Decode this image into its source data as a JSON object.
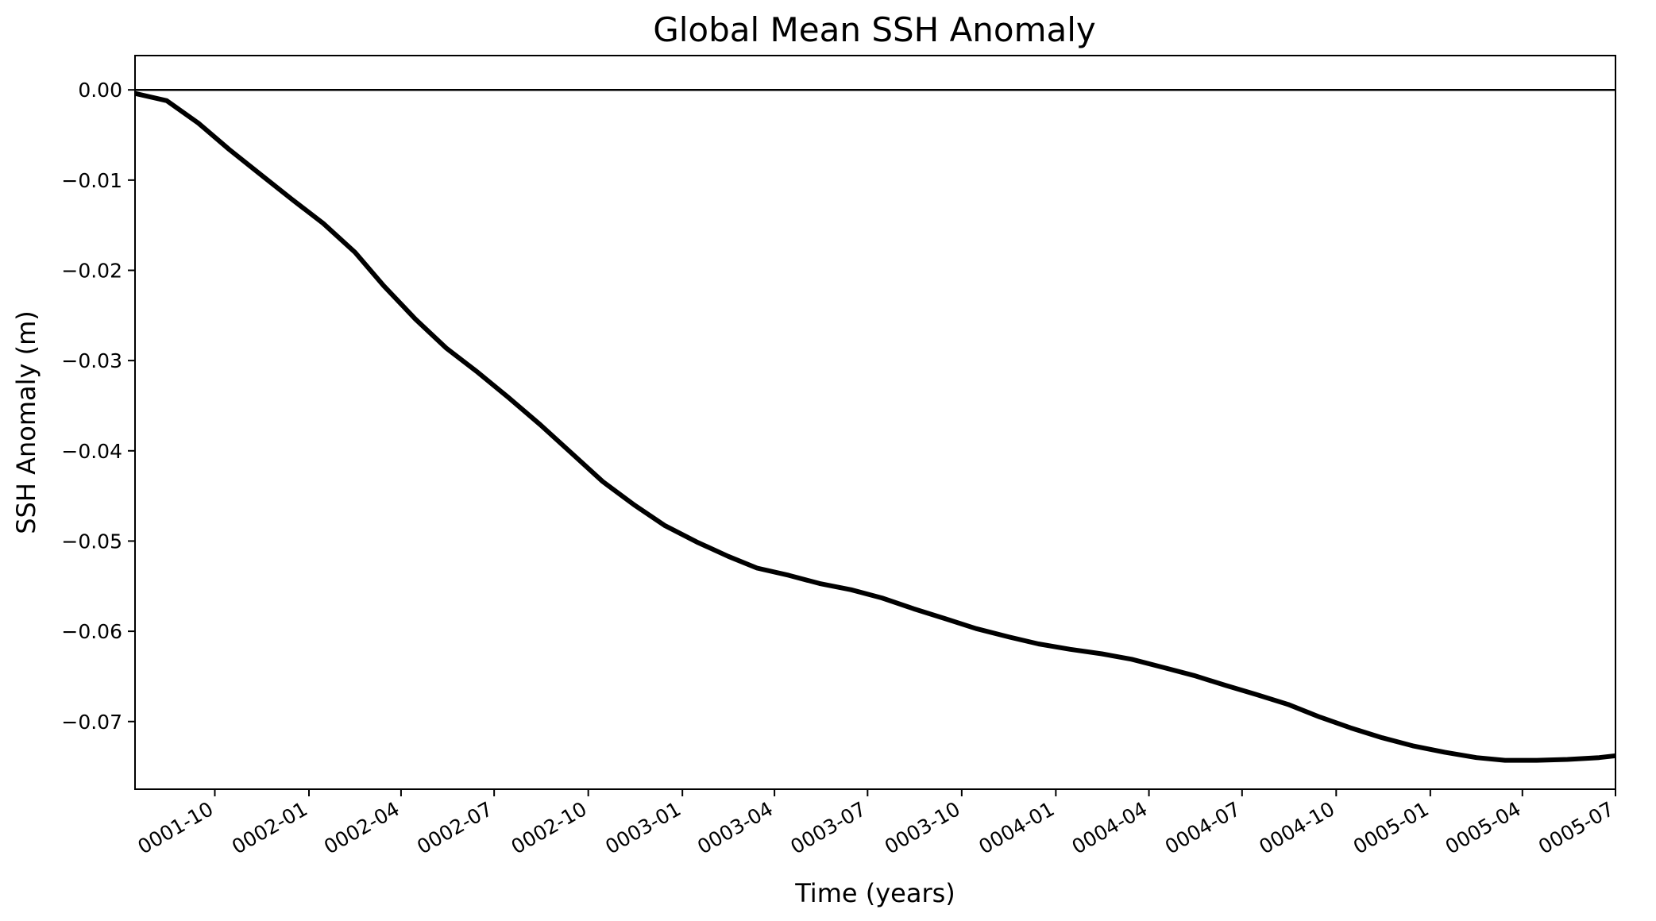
{
  "chart_data": {
    "type": "line",
    "title": "Global Mean SSH Anomaly",
    "xlabel": "Time (years)",
    "ylabel": "SSH Anomaly (m)",
    "x_axis_kind": "date",
    "xlim": [
      "0001-07-15",
      "0005-07-01"
    ],
    "ylim": [
      -0.0775,
      0.0038
    ],
    "y_ticks": [
      0.0,
      -0.01,
      -0.02,
      -0.03,
      -0.04,
      -0.05,
      -0.06,
      -0.07
    ],
    "y_tick_labels": [
      "0.00",
      "−0.01",
      "−0.02",
      "−0.03",
      "−0.04",
      "−0.05",
      "−0.06",
      "−0.07"
    ],
    "x_ticks": [
      "0001-10-01",
      "0002-01-01",
      "0002-04-01",
      "0002-07-01",
      "0002-10-01",
      "0003-01-01",
      "0003-04-01",
      "0003-07-01",
      "0003-10-01",
      "0004-01-01",
      "0004-04-01",
      "0004-07-01",
      "0004-10-01",
      "0005-01-01",
      "0005-04-01",
      "0005-07-01"
    ],
    "x_tick_labels": [
      "0001-10",
      "0002-01",
      "0002-04",
      "0002-07",
      "0002-10",
      "0003-01",
      "0003-04",
      "0003-07",
      "0003-10",
      "0004-01",
      "0004-04",
      "0004-07",
      "0004-10",
      "0005-01",
      "0005-04",
      "0005-07"
    ],
    "grid": false,
    "reference_line": {
      "y": 0.0,
      "color": "#000000"
    },
    "series": [
      {
        "color": "#000000",
        "x": [
          "0001-07-15",
          "0001-08-15",
          "0001-09-15",
          "0001-10-15",
          "0001-11-15",
          "0001-12-15",
          "0002-01-15",
          "0002-02-15",
          "0002-03-15",
          "0002-04-15",
          "0002-05-15",
          "0002-06-15",
          "0002-07-15",
          "0002-08-15",
          "0002-09-15",
          "0002-10-15",
          "0002-11-15",
          "0002-12-15",
          "0003-01-15",
          "0003-02-15",
          "0003-03-15",
          "0003-04-15",
          "0003-05-15",
          "0003-06-15",
          "0003-07-15",
          "0003-08-15",
          "0003-09-15",
          "0003-10-15",
          "0003-11-15",
          "0003-12-15",
          "0004-01-15",
          "0004-02-15",
          "0004-03-15",
          "0004-04-15",
          "0004-05-15",
          "0004-06-15",
          "0004-07-15",
          "0004-08-15",
          "0004-09-15",
          "0004-10-15",
          "0004-11-15",
          "0004-12-15",
          "0005-01-15",
          "0005-02-15",
          "0005-03-15",
          "0005-04-15",
          "0005-05-15",
          "0005-06-15",
          "0005-07-01"
        ],
        "y": [
          -0.0004,
          -0.0012,
          -0.0037,
          -0.0066,
          -0.0094,
          -0.0121,
          -0.0148,
          -0.018,
          -0.0217,
          -0.0254,
          -0.0286,
          -0.0313,
          -0.0341,
          -0.0371,
          -0.0403,
          -0.0434,
          -0.046,
          -0.0483,
          -0.0501,
          -0.0517,
          -0.053,
          -0.0538,
          -0.0547,
          -0.0554,
          -0.0563,
          -0.0575,
          -0.0586,
          -0.0597,
          -0.0606,
          -0.0614,
          -0.062,
          -0.0625,
          -0.0631,
          -0.064,
          -0.0649,
          -0.066,
          -0.067,
          -0.0681,
          -0.0695,
          -0.0707,
          -0.0718,
          -0.0727,
          -0.0734,
          -0.074,
          -0.0743,
          -0.0743,
          -0.0742,
          -0.074,
          -0.0738
        ]
      }
    ]
  }
}
